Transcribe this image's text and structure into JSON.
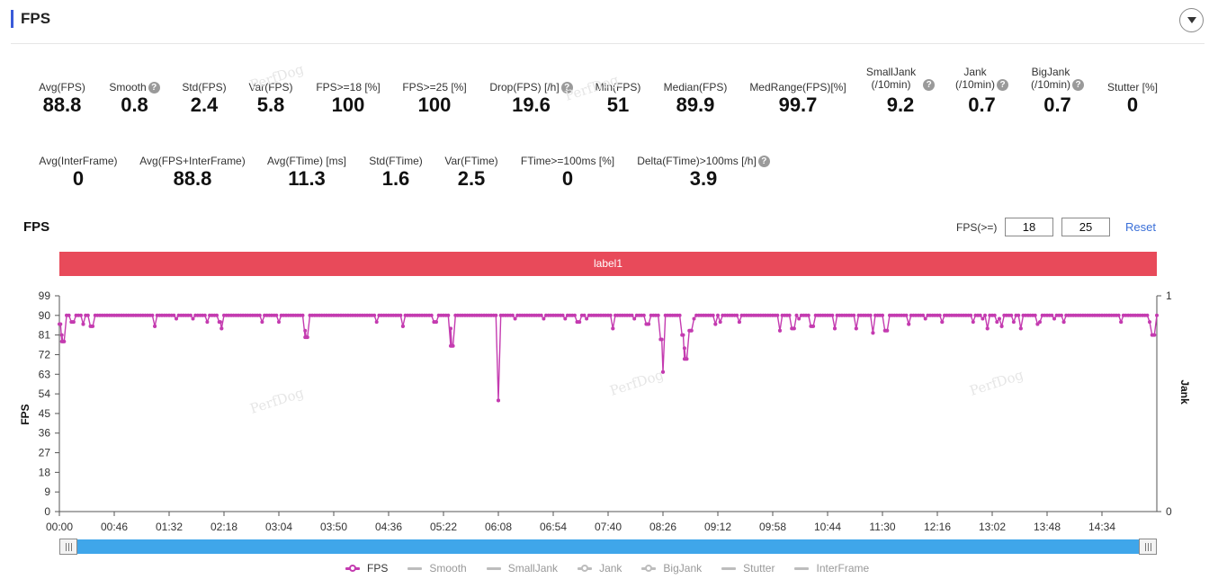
{
  "header": {
    "title": "FPS"
  },
  "metrics_row1": [
    {
      "label": "Avg(FPS)",
      "value": "88.8",
      "help": false
    },
    {
      "label": "Smooth",
      "value": "0.8",
      "help": true
    },
    {
      "label": "Std(FPS)",
      "value": "2.4",
      "help": false
    },
    {
      "label": "Var(FPS)",
      "value": "5.8",
      "help": false
    },
    {
      "label": "FPS>=18 [%]",
      "value": "100",
      "help": false
    },
    {
      "label": "FPS>=25 [%]",
      "value": "100",
      "help": false
    },
    {
      "label": "Drop(FPS) [/h]",
      "value": "19.6",
      "help": true
    },
    {
      "label": "Min(FPS)",
      "value": "51",
      "help": false
    },
    {
      "label": "Median(FPS)",
      "value": "89.9",
      "help": false
    },
    {
      "label": "MedRange(FPS)[%]",
      "value": "99.7",
      "help": false
    },
    {
      "label": "SmallJank",
      "label2": "(/10min)",
      "value": "9.2",
      "help": true
    },
    {
      "label": "Jank",
      "label2": "(/10min)",
      "value": "0.7",
      "help": true
    },
    {
      "label": "BigJank",
      "label2": "(/10min)",
      "value": "0.7",
      "help": true
    },
    {
      "label": "Stutter [%]",
      "value": "0",
      "help": false
    }
  ],
  "metrics_row2": [
    {
      "label": "Avg(InterFrame)",
      "value": "0",
      "help": false
    },
    {
      "label": "Avg(FPS+InterFrame)",
      "value": "88.8",
      "help": false
    },
    {
      "label": "Avg(FTime) [ms]",
      "value": "11.3",
      "help": false
    },
    {
      "label": "Std(FTime)",
      "value": "1.6",
      "help": false
    },
    {
      "label": "Var(FTime)",
      "value": "2.5",
      "help": false
    },
    {
      "label": "FTime>=100ms [%]",
      "value": "0",
      "help": false
    },
    {
      "label": "Delta(FTime)>100ms [/h]",
      "value": "3.9",
      "help": true
    }
  ],
  "chart_section": {
    "title": "FPS",
    "threshold_label": "FPS(>=)",
    "threshold_1": "18",
    "threshold_2": "25",
    "reset_label": "Reset",
    "band_label": "label1"
  },
  "watermark": "PerfDog",
  "colors": {
    "fps_line": "#c43bb0",
    "band": "#e84a5a",
    "slider": "#3fa6ea",
    "accent": "#3a5bd9"
  },
  "chart_data": {
    "type": "line",
    "ylabel": "FPS",
    "y2label": "Jank",
    "ylim": [
      0,
      99
    ],
    "yticks": [
      0,
      9,
      18,
      27,
      36,
      45,
      54,
      63,
      72,
      81,
      90,
      99
    ],
    "y2lim": [
      0,
      1
    ],
    "y2ticks": [
      0,
      1
    ],
    "xlim_seconds": [
      0,
      920
    ],
    "xticks": [
      "00:00",
      "00:46",
      "01:32",
      "02:18",
      "03:04",
      "03:50",
      "04:36",
      "05:22",
      "06:08",
      "06:54",
      "07:40",
      "08:26",
      "09:12",
      "09:58",
      "10:44",
      "11:30",
      "12:16",
      "13:02",
      "13:48",
      "14:34"
    ],
    "series": [
      {
        "name": "FPS",
        "baseline": 90,
        "dips": [
          {
            "t": "00:01",
            "fps": 86
          },
          {
            "t": "00:02",
            "fps": 81
          },
          {
            "t": "00:03",
            "fps": 78
          },
          {
            "t": "00:11",
            "fps": 87
          },
          {
            "t": "00:20",
            "fps": 86
          },
          {
            "t": "00:27",
            "fps": 85
          },
          {
            "t": "01:20",
            "fps": 85
          },
          {
            "t": "02:15",
            "fps": 87
          },
          {
            "t": "02:16",
            "fps": 84
          },
          {
            "t": "03:26",
            "fps": 83
          },
          {
            "t": "03:27",
            "fps": 80
          },
          {
            "t": "04:48",
            "fps": 85
          },
          {
            "t": "05:15",
            "fps": 87
          },
          {
            "t": "05:28",
            "fps": 84
          },
          {
            "t": "05:29",
            "fps": 76
          },
          {
            "t": "06:08",
            "fps": 51
          },
          {
            "t": "07:15",
            "fps": 87
          },
          {
            "t": "07:44",
            "fps": 84
          },
          {
            "t": "08:13",
            "fps": 86
          },
          {
            "t": "08:25",
            "fps": 79
          },
          {
            "t": "08:26",
            "fps": 64
          },
          {
            "t": "08:43",
            "fps": 81
          },
          {
            "t": "08:44",
            "fps": 75
          },
          {
            "t": "08:45",
            "fps": 70
          },
          {
            "t": "08:49",
            "fps": 83
          },
          {
            "t": "09:10",
            "fps": 86
          },
          {
            "t": "09:30",
            "fps": 87
          },
          {
            "t": "10:04",
            "fps": 83
          },
          {
            "t": "10:15",
            "fps": 84
          },
          {
            "t": "10:31",
            "fps": 85
          },
          {
            "t": "10:50",
            "fps": 84
          },
          {
            "t": "11:08",
            "fps": 84
          },
          {
            "t": "11:22",
            "fps": 82
          },
          {
            "t": "11:33",
            "fps": 83
          },
          {
            "t": "11:52",
            "fps": 86
          },
          {
            "t": "12:20",
            "fps": 87
          },
          {
            "t": "12:58",
            "fps": 84
          },
          {
            "t": "13:10",
            "fps": 85
          },
          {
            "t": "13:26",
            "fps": 84
          },
          {
            "t": "13:40",
            "fps": 86
          },
          {
            "t": "14:02",
            "fps": 87
          },
          {
            "t": "14:50",
            "fps": 87
          },
          {
            "t": "15:17",
            "fps": 81
          }
        ]
      }
    ],
    "legend": [
      {
        "name": "FPS",
        "color": "#c43bb0",
        "active": true,
        "marker": "dot"
      },
      {
        "name": "Smooth",
        "color": "#bdbdbd",
        "active": false,
        "marker": "line"
      },
      {
        "name": "SmallJank",
        "color": "#bdbdbd",
        "active": false,
        "marker": "line"
      },
      {
        "name": "Jank",
        "color": "#bdbdbd",
        "active": false,
        "marker": "dot"
      },
      {
        "name": "BigJank",
        "color": "#bdbdbd",
        "active": false,
        "marker": "dot"
      },
      {
        "name": "Stutter",
        "color": "#bdbdbd",
        "active": false,
        "marker": "line"
      },
      {
        "name": "InterFrame",
        "color": "#bdbdbd",
        "active": false,
        "marker": "line"
      }
    ]
  }
}
